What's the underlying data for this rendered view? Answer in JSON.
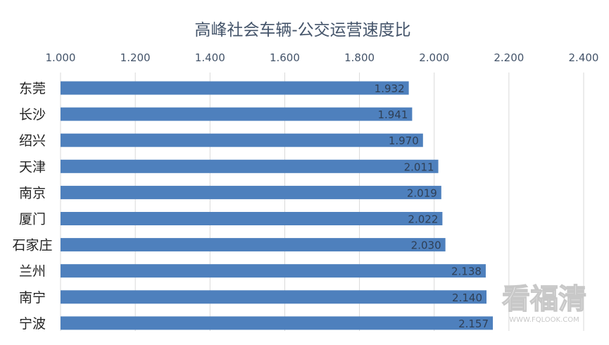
{
  "chart_data": {
    "type": "bar",
    "orientation": "horizontal",
    "title": "高峰社会车辆-公交运营速度比",
    "xlabel": "",
    "ylabel": "",
    "xlim": [
      1.0,
      2.4
    ],
    "x_axis_position": "top",
    "x_ticks": [
      1.0,
      1.2,
      1.4,
      1.6,
      1.8,
      2.0,
      2.2,
      2.4
    ],
    "x_tick_labels": [
      "1.000",
      "1.200",
      "1.400",
      "1.600",
      "1.800",
      "2.000",
      "2.200",
      "2.400"
    ],
    "grid": "vertical",
    "legend": "none",
    "bar_color": "#4e80bd",
    "categories": [
      "东莞",
      "长沙",
      "绍兴",
      "天津",
      "南京",
      "厦门",
      "石家庄",
      "兰州",
      "南宁",
      "宁波"
    ],
    "values": [
      1.932,
      1.941,
      1.97,
      2.011,
      2.019,
      2.022,
      2.03,
      2.138,
      2.14,
      2.157
    ],
    "value_labels": [
      "1.932",
      "1.941",
      "1.970",
      "2.011",
      "2.019",
      "2.022",
      "2.030",
      "2.138",
      "2.140",
      "2.157"
    ]
  },
  "watermark": {
    "text": "看福清",
    "url": "WWW.FQLOOK.COM"
  },
  "colors": {
    "title": "#44546a",
    "tick_label": "#44546a",
    "category_label": "#222222",
    "value_label": "#2f3f55",
    "grid": "#d9d9d9",
    "watermark": "#c8c8c8"
  }
}
